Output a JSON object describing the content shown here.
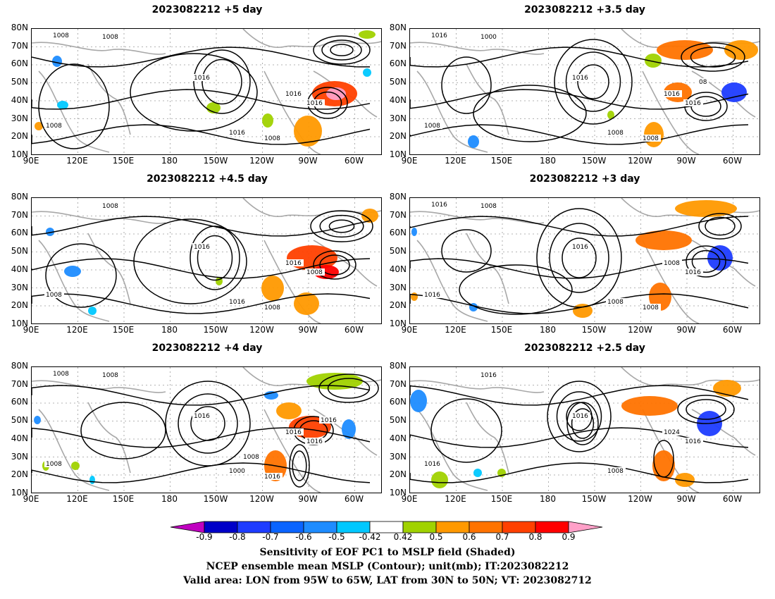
{
  "panels": [
    {
      "title": "2023082212 +5 day",
      "contour_labels": [
        "1008",
        "1008",
        "1016",
        "1016",
        "1016",
        "1016",
        "1008",
        "1008"
      ]
    },
    {
      "title": "2023082212 +3.5 day",
      "contour_labels": [
        "1000",
        "1008",
        "1016",
        "1016",
        "1008",
        "1016",
        "1008",
        "1016",
        "08"
      ]
    },
    {
      "title": "2023082212 +4.5 day",
      "contour_labels": [
        "1008",
        "1008",
        "1016",
        "1016",
        "1016",
        "1008",
        "1008"
      ]
    },
    {
      "title": "2023082212 +3 day",
      "contour_labels": [
        "1008",
        "1016",
        "1016",
        "1008",
        "1008",
        "1016",
        "1008",
        "1016"
      ]
    },
    {
      "title": "2023082212 +4 day",
      "contour_labels": [
        "1008",
        "1008",
        "1016",
        "1016",
        "1000",
        "1016",
        "1016",
        "1008",
        "1016",
        "1008"
      ]
    },
    {
      "title": "2023082212 +2.5 day",
      "contour_labels": [
        "1016",
        "1016",
        "1016",
        "1024",
        "1008",
        "1016"
      ]
    }
  ],
  "lat_labels": [
    "80N",
    "70N",
    "60N",
    "50N",
    "40N",
    "30N",
    "20N",
    "10N"
  ],
  "lon_labels": [
    "90E",
    "120E",
    "150E",
    "180",
    "150W",
    "120W",
    "90W",
    "60W"
  ],
  "colorbar": {
    "labels": [
      "-0.9",
      "-0.8",
      "-0.7",
      "-0.6",
      "-0.5",
      "-0.42",
      "0.42",
      "0.5",
      "0.6",
      "0.7",
      "0.8",
      "0.9"
    ],
    "colors": [
      "#c000c0",
      "#0000c8",
      "#1e3cff",
      "#0a64ff",
      "#1e8cff",
      "#00c8ff",
      "#ffffff",
      "#a0d200",
      "#ff9900",
      "#ff7300",
      "#ff4000",
      "#ff0000",
      "#ffa0c8"
    ]
  },
  "captions": [
    "Sensitivity of EOF PC1 to MSLP field (Shaded)",
    "NCEP ensemble mean MSLP (Contour); unit(mb); IT:2023082212",
    "Valid area: LON from 95W to 65W, LAT from 30N to 50N; VT: 2023082712"
  ]
}
